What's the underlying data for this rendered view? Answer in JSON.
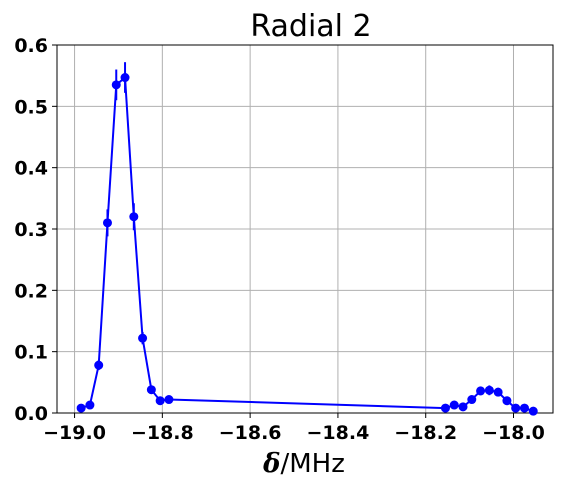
{
  "chart_data": {
    "type": "scatter",
    "title": "Radial 2",
    "xlabel_symbol": "δ",
    "xlabel_unit": "/MHz",
    "ylabel": "",
    "xlim": [
      -19.04,
      -17.91
    ],
    "ylim": [
      0.0,
      0.6
    ],
    "grid": true,
    "color": "#0000ff",
    "x_ticks": [
      -19.0,
      -18.8,
      -18.6,
      -18.4,
      -18.2,
      -18.0
    ],
    "x_tick_labels": [
      "−19.0",
      "−18.8",
      "−18.6",
      "−18.4",
      "−18.2",
      "−18.0"
    ],
    "y_ticks": [
      0.0,
      0.1,
      0.2,
      0.3,
      0.4,
      0.5,
      0.6
    ],
    "y_tick_labels": [
      "0.0",
      "0.1",
      "0.2",
      "0.3",
      "0.4",
      "0.5",
      "0.6"
    ],
    "series": [
      {
        "x": [
          -18.985,
          -18.965,
          -18.945,
          -18.925,
          -18.905,
          -18.885,
          -18.865,
          -18.845,
          -18.825,
          -18.805,
          -18.785,
          -18.155,
          -18.135,
          -18.115,
          -18.095,
          -18.075,
          -18.055,
          -18.035,
          -18.015,
          -17.995,
          -17.975,
          -17.955
        ],
        "y": [
          0.008,
          0.013,
          0.078,
          0.31,
          0.535,
          0.547,
          0.32,
          0.122,
          0.038,
          0.02,
          0.022,
          0.008,
          0.013,
          0.01,
          0.022,
          0.036,
          0.037,
          0.034,
          0.02,
          0.008,
          0.008,
          0.003
        ],
        "yerr": [
          0.003,
          0.003,
          0.008,
          0.022,
          0.025,
          0.025,
          0.022,
          0.01,
          0.006,
          0.004,
          0.004,
          0.003,
          0.003,
          0.003,
          0.005,
          0.007,
          0.008,
          0.007,
          0.005,
          0.003,
          0.003,
          0.002
        ]
      }
    ]
  }
}
